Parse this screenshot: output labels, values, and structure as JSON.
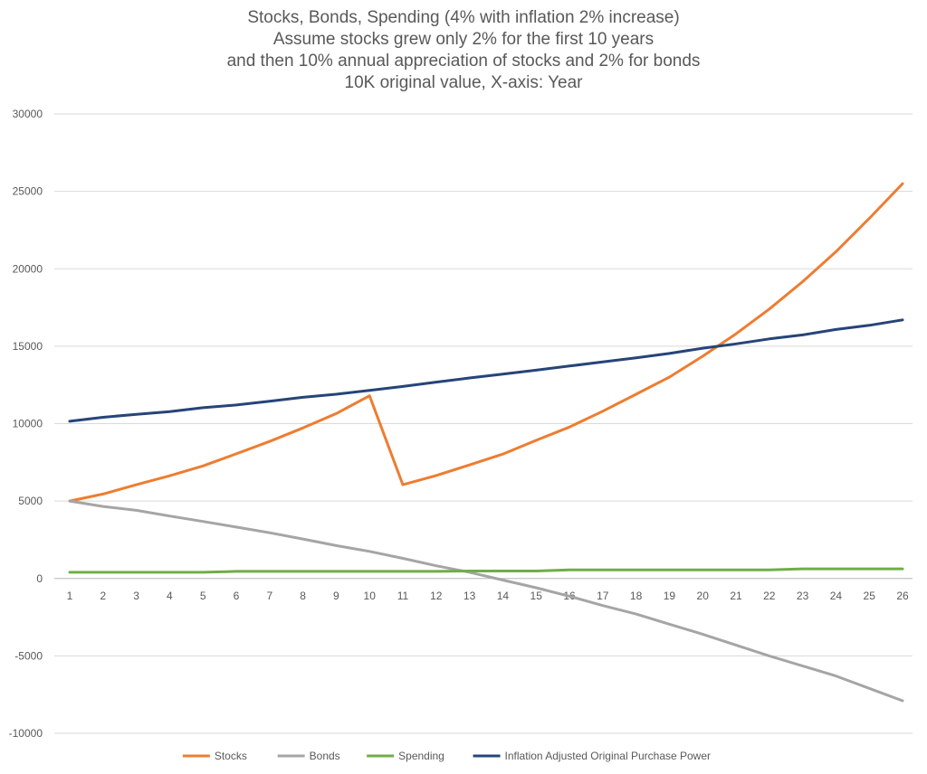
{
  "chart_data": {
    "type": "line",
    "title_lines": [
      "Stocks, Bonds, Spending (4% with inflation 2% increase)",
      "Assume stocks grew only 2% for the first 10 years",
      "and then 10% annual appreciation of stocks and 2% for bonds",
      "10K original value, X-axis: Year"
    ],
    "x": [
      1,
      2,
      3,
      4,
      5,
      6,
      7,
      8,
      9,
      10,
      11,
      12,
      13,
      14,
      15,
      16,
      17,
      18,
      19,
      20,
      21,
      22,
      23,
      24,
      25,
      26
    ],
    "y_ticks": [
      30000,
      25000,
      20000,
      15000,
      10000,
      5000,
      0,
      -5000,
      -10000
    ],
    "ylim": [
      -10000,
      30000
    ],
    "grid": true,
    "legend_position": "bottom",
    "series": [
      {
        "name": "Stocks",
        "color": "#ED7D31",
        "values": [
          5000,
          5450,
          6050,
          6630,
          7270,
          8050,
          8850,
          9720,
          10650,
          11800,
          6050,
          6650,
          7330,
          8030,
          8920,
          9780,
          10800,
          11900,
          13000,
          14350,
          15800,
          17400,
          19170,
          21100,
          23250,
          25500
        ]
      },
      {
        "name": "Bonds",
        "color": "#A5A5A5",
        "values": [
          5000,
          4650,
          4400,
          4030,
          3680,
          3320,
          2950,
          2550,
          2120,
          1750,
          1300,
          820,
          400,
          -100,
          -600,
          -1150,
          -1750,
          -2300,
          -2950,
          -3600,
          -4300,
          -5000,
          -5650,
          -6300,
          -7100,
          -7900
        ]
      },
      {
        "name": "Spending",
        "color": "#70AD47",
        "values": [
          400,
          400,
          400,
          400,
          400,
          460,
          460,
          460,
          460,
          460,
          460,
          460,
          480,
          480,
          480,
          550,
          550,
          550,
          550,
          550,
          550,
          550,
          620,
          620,
          620,
          620
        ]
      },
      {
        "name": "Inflation Adjusted Original Purchase Power",
        "color": "#264478",
        "values": [
          10150,
          10410,
          10600,
          10770,
          11030,
          11200,
          11450,
          11700,
          11900,
          12150,
          12400,
          12680,
          12950,
          13200,
          13450,
          13720,
          13980,
          14250,
          14530,
          14870,
          15150,
          15470,
          15730,
          16080,
          16350,
          16700
        ]
      }
    ]
  }
}
